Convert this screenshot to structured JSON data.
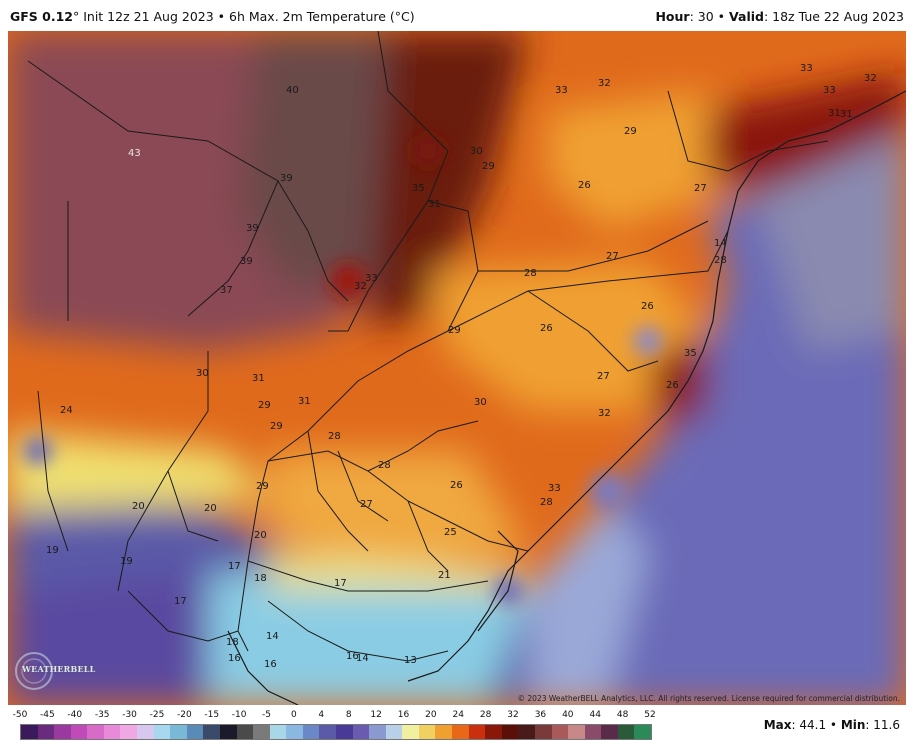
{
  "header": {
    "model": "GFS 0.12",
    "degree": "°",
    "init": " Init 12z 21 Aug 2023 • 6h Max. 2m Temperature (°C)",
    "hour_label": "Hour",
    "hour_value": ": 30 • ",
    "valid_label": "Valid",
    "valid_value": ": 18z Tue 22 Aug 2023"
  },
  "copyright": "© 2023 WeatherBELL Analytics, LLC. All rights reserved. License required for commercial distribution.",
  "logo_text": "WEATHERBELL",
  "stats": {
    "max_label": "Max",
    "max_value": ": 44.1 • ",
    "min_label": "Min",
    "min_value": ": 11.6"
  },
  "colorbar": {
    "ticks": [
      "-50",
      "-45",
      "-40",
      "-35",
      "-30",
      "-25",
      "-20",
      "-15",
      "-10",
      "-5",
      "0",
      "4",
      "8",
      "12",
      "16",
      "20",
      "24",
      "28",
      "32",
      "36",
      "40",
      "44",
      "48",
      "52"
    ],
    "colors": [
      "#3a1a5c",
      "#6a2a80",
      "#9a3aa0",
      "#c04ab8",
      "#d86ac8",
      "#e88ad8",
      "#f0a8e4",
      "#d8c8f0",
      "#a8d8f0",
      "#7ab8d8",
      "#5a8ab8",
      "#3a4a6a",
      "#1a1a2a",
      "#4a4a4a",
      "#7a7a7a",
      "#a8d8e8",
      "#8ab8e0",
      "#6a88c8",
      "#5a5aa8",
      "#4a3a98",
      "#6a5ab0",
      "#8a9ad0",
      "#b8d0e8",
      "#f0f0a0",
      "#f0d060",
      "#f0a030",
      "#e86818",
      "#c83010",
      "#8a1808",
      "#5a1008",
      "#4a1a1a",
      "#7a3a3a",
      "#a85a5a",
      "#c88888",
      "#8a4a6a",
      "#5a2a4a",
      "#2a5a3a",
      "#2a8a5a"
    ]
  },
  "labels": [
    {
      "t": "40",
      "light": false
    },
    {
      "t": "43",
      "light": true
    },
    {
      "t": "39",
      "light": false
    },
    {
      "t": "39",
      "light": false
    },
    {
      "t": "39",
      "light": false
    },
    {
      "t": "37",
      "light": false
    },
    {
      "t": "35",
      "light": false
    },
    {
      "t": "31",
      "light": false
    },
    {
      "t": "33",
      "light": false
    },
    {
      "t": "32",
      "light": false
    },
    {
      "t": "33",
      "light": false
    },
    {
      "t": "32",
      "light": false
    },
    {
      "t": "30",
      "light": false
    },
    {
      "t": "29",
      "light": false
    },
    {
      "t": "29",
      "light": false
    },
    {
      "t": "26",
      "light": false
    },
    {
      "t": "27",
      "light": false
    },
    {
      "t": "33",
      "light": false
    },
    {
      "t": "32",
      "light": false
    },
    {
      "t": "33",
      "light": false
    },
    {
      "t": "31",
      "light": false
    },
    {
      "t": "27",
      "light": false
    },
    {
      "t": "28",
      "light": false
    },
    {
      "t": "26",
      "light": false
    },
    {
      "t": "29",
      "light": false
    },
    {
      "t": "26",
      "light": false
    },
    {
      "t": "27",
      "light": false
    },
    {
      "t": "35",
      "light": false
    },
    {
      "t": "26",
      "light": false
    },
    {
      "t": "28",
      "light": false
    },
    {
      "t": "30",
      "light": false
    },
    {
      "t": "31",
      "light": false
    },
    {
      "t": "29",
      "light": false
    },
    {
      "t": "31",
      "light": false
    },
    {
      "t": "30",
      "light": false
    },
    {
      "t": "32",
      "light": false
    },
    {
      "t": "24",
      "light": false
    },
    {
      "t": "29",
      "light": false
    },
    {
      "t": "28",
      "light": false
    },
    {
      "t": "28",
      "light": false
    },
    {
      "t": "26",
      "light": false
    },
    {
      "t": "27",
      "light": false
    },
    {
      "t": "28",
      "light": false
    },
    {
      "t": "25",
      "light": false
    },
    {
      "t": "20",
      "light": false
    },
    {
      "t": "20",
      "light": false
    },
    {
      "t": "20",
      "light": false
    },
    {
      "t": "19",
      "light": false
    },
    {
      "t": "19",
      "light": false
    },
    {
      "t": "17",
      "light": false
    },
    {
      "t": "18",
      "light": false
    },
    {
      "t": "17",
      "light": false
    },
    {
      "t": "21",
      "light": false
    },
    {
      "t": "17",
      "light": false
    },
    {
      "t": "18",
      "light": false
    },
    {
      "t": "16",
      "light": false
    },
    {
      "t": "16",
      "light": false
    },
    {
      "t": "14",
      "light": false
    },
    {
      "t": "16",
      "light": false
    },
    {
      "t": "14",
      "light": false
    },
    {
      "t": "13",
      "light": false
    },
    {
      "t": "14",
      "light": false
    },
    {
      "t": "29",
      "light": false
    },
    {
      "t": "31",
      "light": false
    },
    {
      "t": "33",
      "light": false
    }
  ]
}
